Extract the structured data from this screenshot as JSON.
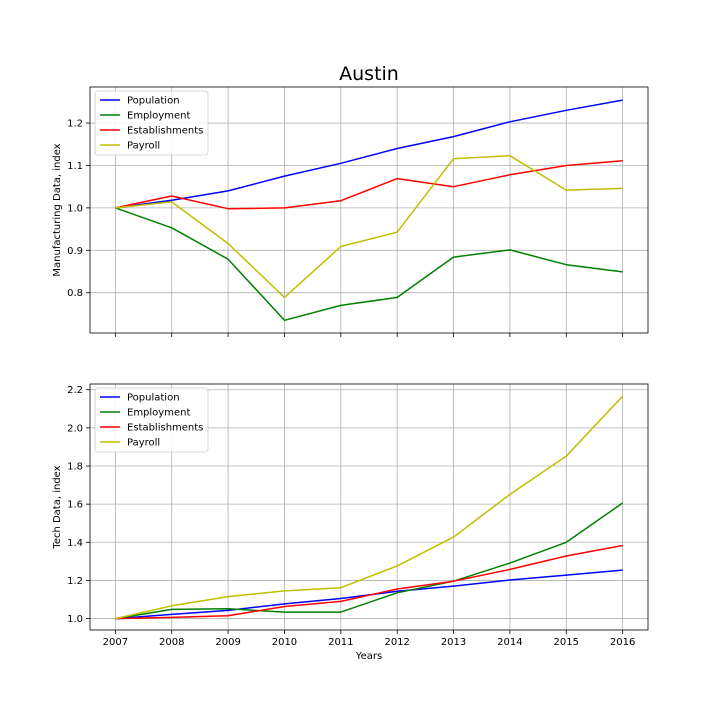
{
  "chart_data": [
    {
      "type": "line",
      "title": "Austin",
      "xlabel": "",
      "ylabel": "Manufacturing Data, index",
      "x": [
        2007,
        2008,
        2009,
        2010,
        2011,
        2012,
        2013,
        2014,
        2015,
        2016
      ],
      "xlim": [
        2006.55,
        2016.45
      ],
      "ylim": [
        0.705,
        1.285
      ],
      "yticks": [
        "0.8",
        "0.9",
        "1.0",
        "1.1",
        "1.2"
      ],
      "xticks": [],
      "grid": true,
      "legend": "top-left",
      "series": [
        {
          "name": "Population",
          "color": "#0000ff",
          "values": [
            1.0,
            1.018,
            1.04,
            1.075,
            1.105,
            1.14,
            1.168,
            1.203,
            1.23,
            1.254
          ]
        },
        {
          "name": "Employment",
          "color": "#008000",
          "values": [
            1.0,
            0.953,
            0.879,
            0.735,
            0.77,
            0.789,
            0.884,
            0.901,
            0.866,
            0.849
          ]
        },
        {
          "name": "Establishments",
          "color": "#ff0000",
          "values": [
            1.0,
            1.028,
            0.998,
            1.0,
            1.017,
            1.069,
            1.05,
            1.078,
            1.1,
            1.111
          ]
        },
        {
          "name": "Payroll",
          "color": "#bfbf00",
          "values": [
            1.0,
            1.014,
            0.916,
            0.789,
            0.909,
            0.943,
            1.116,
            1.123,
            1.042,
            1.046
          ]
        }
      ]
    },
    {
      "type": "line",
      "title": "",
      "xlabel": "Years",
      "ylabel": "Tech Data, index",
      "x": [
        2007,
        2008,
        2009,
        2010,
        2011,
        2012,
        2013,
        2014,
        2015,
        2016
      ],
      "xlim": [
        2006.55,
        2016.45
      ],
      "ylim": [
        0.94,
        2.23
      ],
      "yticks": [
        "1.0",
        "1.2",
        "1.4",
        "1.6",
        "1.8",
        "2.0",
        "2.2"
      ],
      "xticks": [
        "2007",
        "2008",
        "2009",
        "2010",
        "2011",
        "2012",
        "2013",
        "2014",
        "2015",
        "2016"
      ],
      "grid": true,
      "legend": "top-left",
      "series": [
        {
          "name": "Population",
          "color": "#0000ff",
          "values": [
            1.0,
            1.022,
            1.043,
            1.077,
            1.105,
            1.143,
            1.17,
            1.202,
            1.228,
            1.254
          ]
        },
        {
          "name": "Employment",
          "color": "#008000",
          "values": [
            1.0,
            1.048,
            1.051,
            1.034,
            1.034,
            1.135,
            1.196,
            1.291,
            1.4,
            1.606
          ]
        },
        {
          "name": "Establishments",
          "color": "#ff0000",
          "values": [
            1.0,
            1.006,
            1.015,
            1.063,
            1.09,
            1.155,
            1.196,
            1.258,
            1.328,
            1.383
          ]
        },
        {
          "name": "Payroll",
          "color": "#bfbf00",
          "values": [
            1.0,
            1.067,
            1.115,
            1.145,
            1.162,
            1.276,
            1.427,
            1.651,
            1.852,
            2.166
          ]
        }
      ]
    }
  ]
}
